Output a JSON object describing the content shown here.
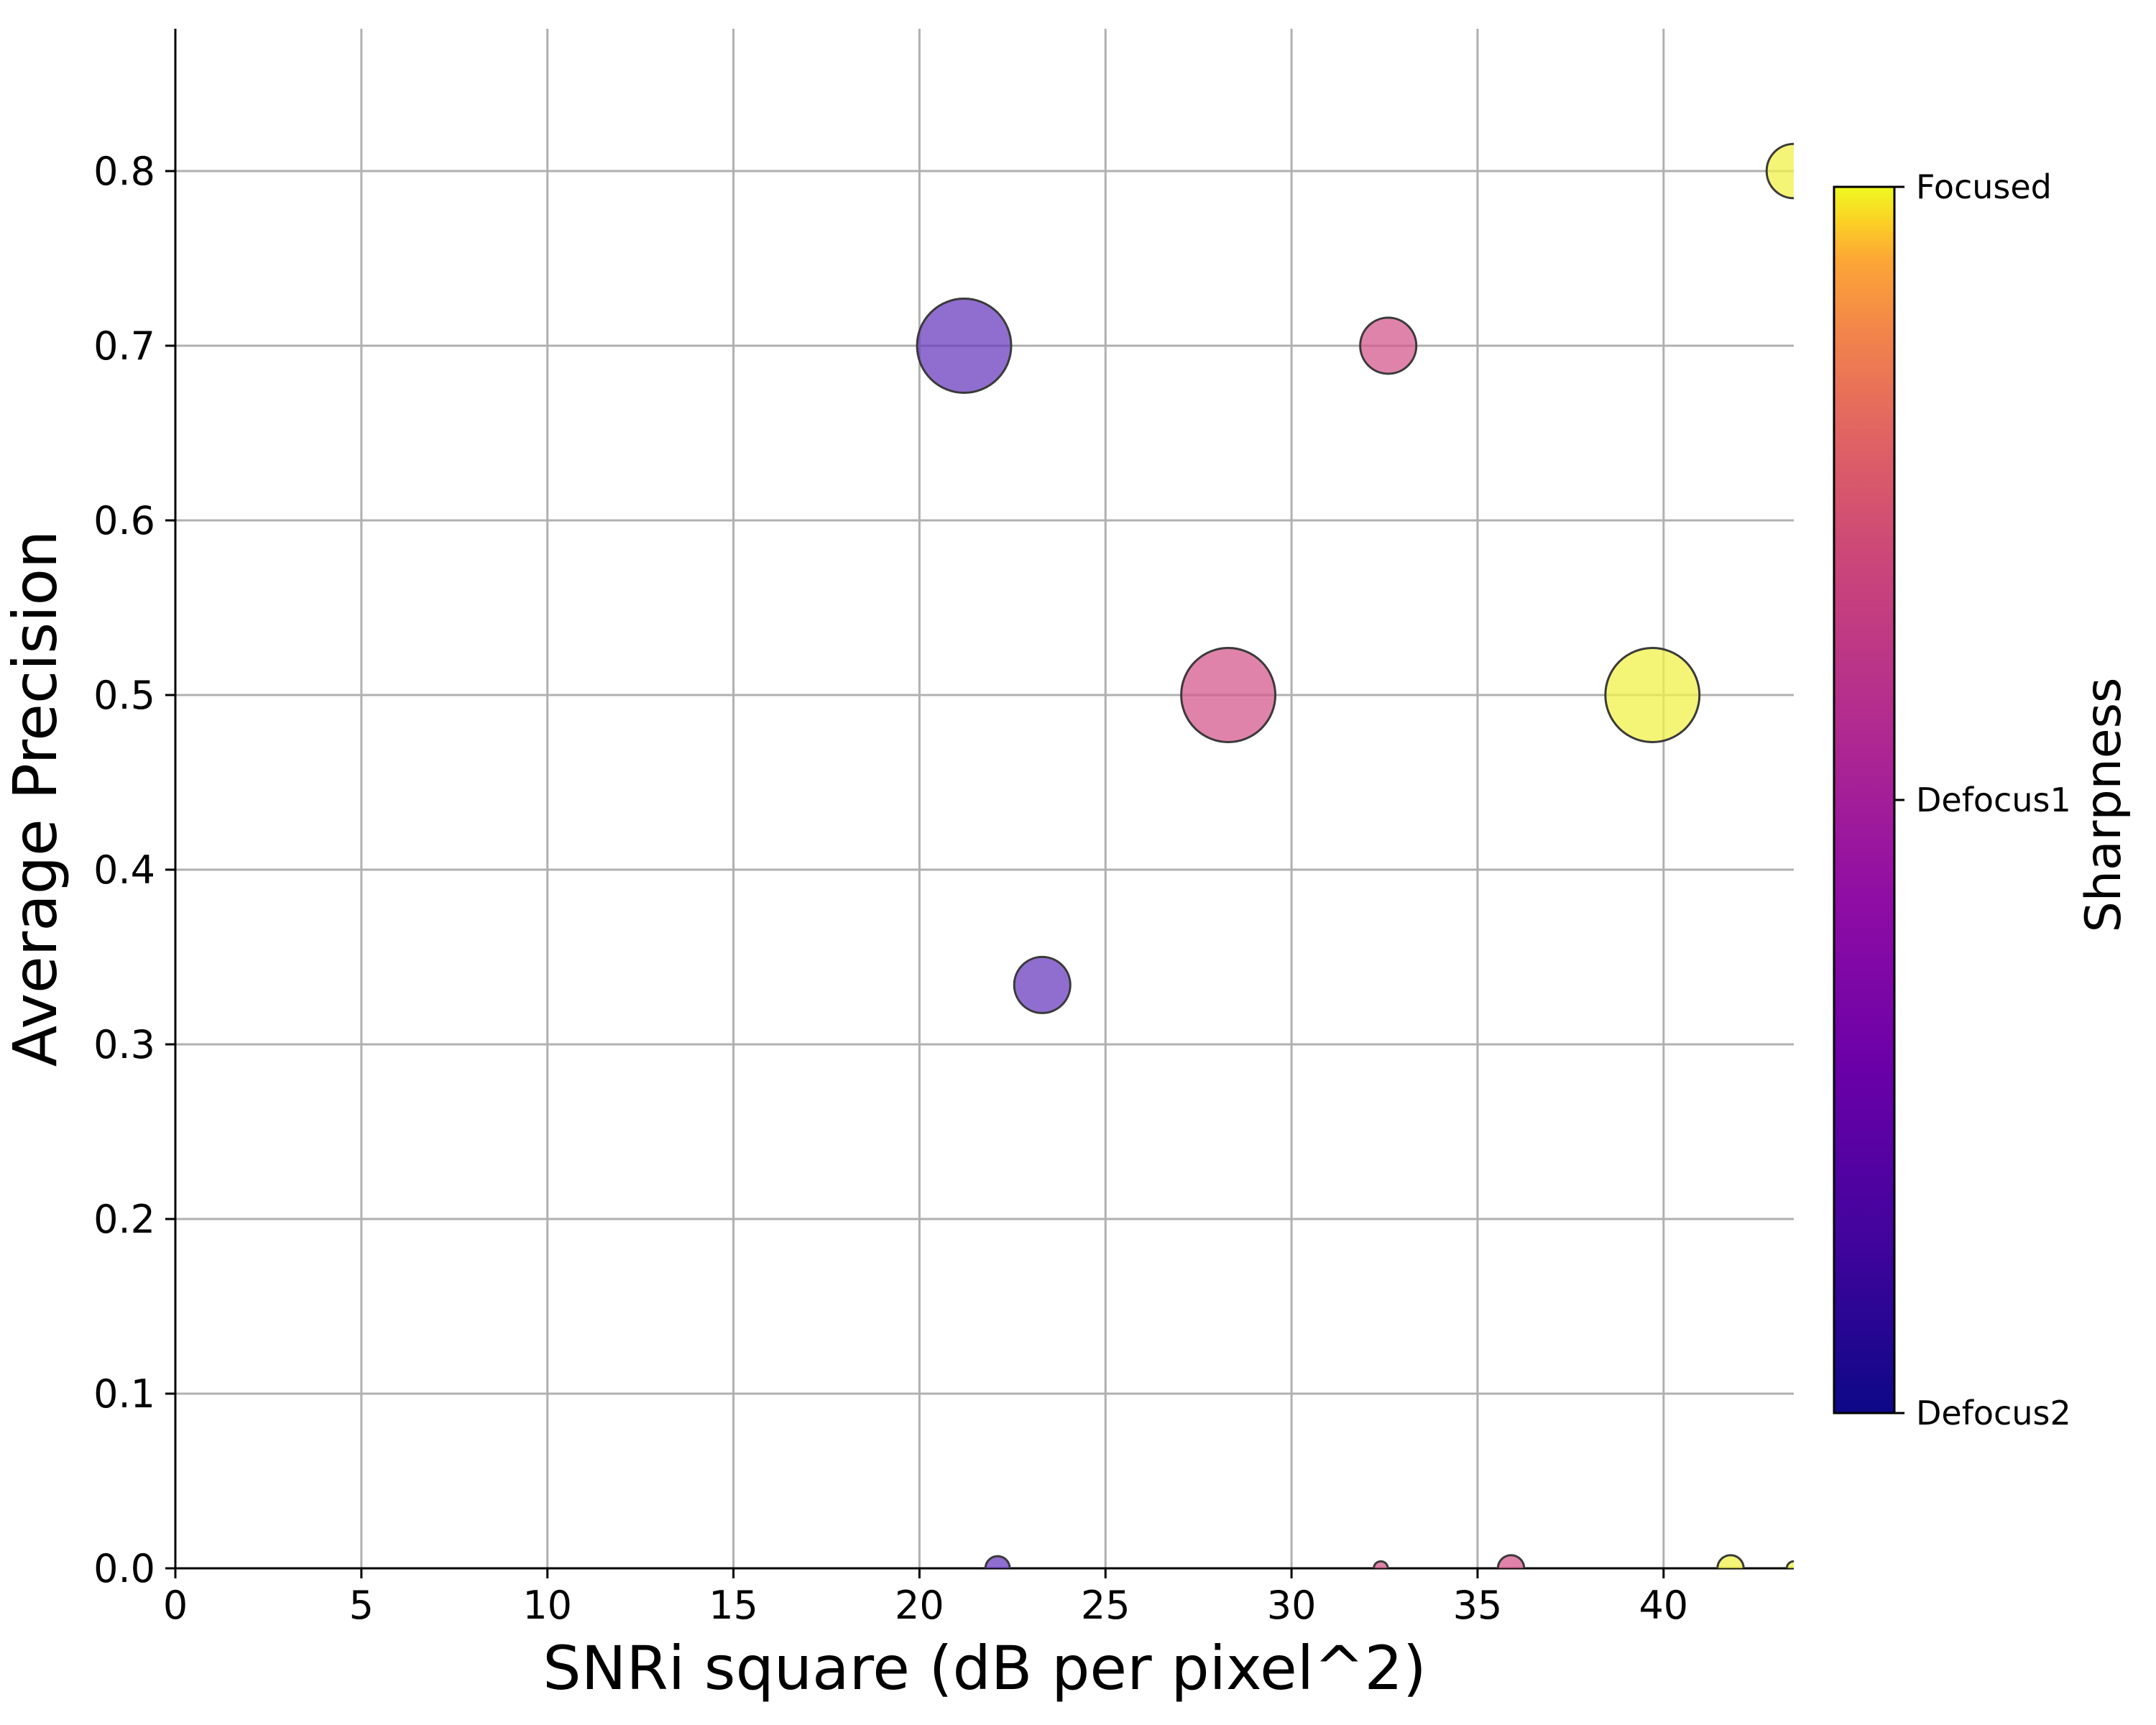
{
  "chart_data": {
    "type": "scatter",
    "xlabel": "SNRi square (dB per pixel^2)",
    "ylabel": "Average Precision",
    "xlim": [
      0,
      43.5
    ],
    "ylim": [
      0,
      0.88
    ],
    "xticks": [
      "0",
      "5",
      "10",
      "15",
      "20",
      "25",
      "30",
      "35",
      "40"
    ],
    "yticks": [
      "0.0",
      "0.1",
      "0.2",
      "0.3",
      "0.4",
      "0.5",
      "0.6",
      "0.7",
      "0.8"
    ],
    "grid": true,
    "colormap": "plasma",
    "colorbar": {
      "label": "Sharpness",
      "ticks": [
        "Defocus2",
        "Defocus1",
        "Focused"
      ]
    },
    "points": [
      {
        "x": 21.2,
        "y": 0.7,
        "size": 9000,
        "sharpness": "Defocus2",
        "color": "#6a3dbf"
      },
      {
        "x": 23.3,
        "y": 0.334,
        "size": 3200,
        "sharpness": "Defocus2",
        "color": "#6a3dbf"
      },
      {
        "x": 22.1,
        "y": 0.0,
        "size": 600,
        "sharpness": "Defocus2",
        "color": "#6a3dbf"
      },
      {
        "x": 32.6,
        "y": 0.7,
        "size": 3200,
        "sharpness": "Defocus1",
        "color": "#d65a8e"
      },
      {
        "x": 28.3,
        "y": 0.5,
        "size": 9000,
        "sharpness": "Defocus1",
        "color": "#d65a8e"
      },
      {
        "x": 32.4,
        "y": 0.0,
        "size": 200,
        "sharpness": "Defocus1",
        "color": "#d65a8e"
      },
      {
        "x": 35.9,
        "y": 0.0,
        "size": 700,
        "sharpness": "Defocus1",
        "color": "#d65a8e"
      },
      {
        "x": 43.5,
        "y": 0.8,
        "size": 3000,
        "sharpness": "Focused",
        "color": "#f0f04a"
      },
      {
        "x": 39.7,
        "y": 0.5,
        "size": 9000,
        "sharpness": "Focused",
        "color": "#f0f04a"
      },
      {
        "x": 41.8,
        "y": 0.0,
        "size": 700,
        "sharpness": "Focused",
        "color": "#f0f04a"
      },
      {
        "x": 43.5,
        "y": 0.0,
        "size": 200,
        "sharpness": "Focused",
        "color": "#f0f04a"
      }
    ]
  }
}
